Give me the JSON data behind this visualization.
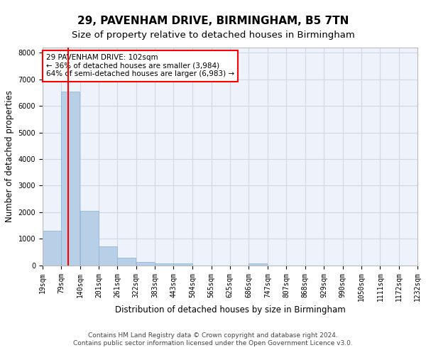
{
  "title": "29, PAVENHAM DRIVE, BIRMINGHAM, B5 7TN",
  "subtitle": "Size of property relative to detached houses in Birmingham",
  "xlabel": "Distribution of detached houses by size in Birmingham",
  "ylabel": "Number of detached properties",
  "footer_line1": "Contains HM Land Registry data © Crown copyright and database right 2024.",
  "footer_line2": "Contains public sector information licensed under the Open Government Licence v3.0.",
  "bin_edges": [
    19,
    79,
    140,
    201,
    261,
    322,
    383,
    443,
    504,
    565,
    625,
    686,
    747,
    807,
    868,
    929,
    990,
    1050,
    1111,
    1172,
    1232
  ],
  "bar_heights": [
    1300,
    6550,
    2050,
    700,
    280,
    130,
    80,
    70,
    0,
    0,
    0,
    80,
    0,
    0,
    0,
    0,
    0,
    0,
    0,
    0
  ],
  "bar_color": "#b8cfe8",
  "bar_edgecolor": "#8ab0d8",
  "grid_color": "#d0d8e8",
  "bg_color": "#eef2fa",
  "red_line_x": 102,
  "ylim": [
    0,
    8200
  ],
  "yticks": [
    0,
    1000,
    2000,
    3000,
    4000,
    5000,
    6000,
    7000,
    8000
  ],
  "annotation_text": "29 PAVENHAM DRIVE: 102sqm\n← 36% of detached houses are smaller (3,984)\n64% of semi-detached houses are larger (6,983) →",
  "annotation_bbox_facecolor": "white",
  "annotation_bbox_edgecolor": "red",
  "title_fontsize": 11,
  "subtitle_fontsize": 9.5,
  "tick_fontsize": 7,
  "label_fontsize": 8.5,
  "footer_fontsize": 6.5
}
